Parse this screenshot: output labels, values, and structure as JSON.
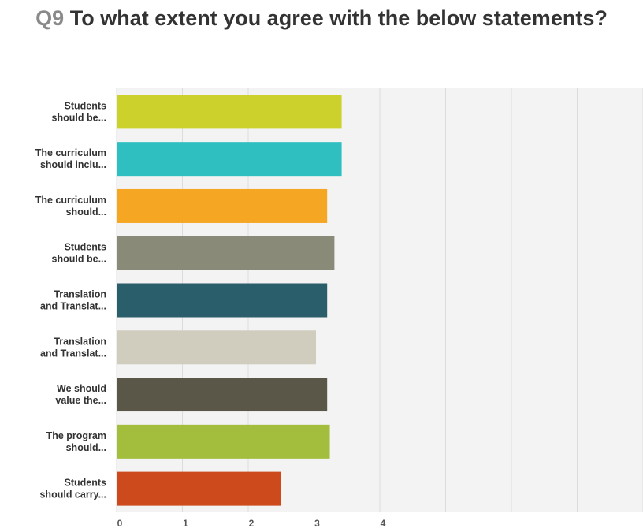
{
  "chart_data": {
    "type": "bar",
    "orientation": "horizontal",
    "title_prefix": "Q9",
    "title": "To what extent you agree with the below statements?",
    "categories": [
      [
        "Students",
        "should be..."
      ],
      [
        "The curriculum",
        "should inclu..."
      ],
      [
        "The curriculum",
        "should..."
      ],
      [
        "Students",
        "should be..."
      ],
      [
        "Translation",
        "and Translat..."
      ],
      [
        "Translation",
        "and Translat..."
      ],
      [
        "We should",
        "value the..."
      ],
      [
        "The program",
        "should..."
      ],
      [
        "Students",
        "should carry..."
      ]
    ],
    "values": [
      3.42,
      3.42,
      3.2,
      3.31,
      3.2,
      3.03,
      3.2,
      3.24,
      2.5
    ],
    "colors": [
      "#cdd12c",
      "#2fbfc1",
      "#f5a623",
      "#898a78",
      "#2b5e6b",
      "#d0cdbf",
      "#5a5748",
      "#a3be3c",
      "#cc4a1c"
    ],
    "xticks": [
      "0",
      "1",
      "2",
      "3",
      "4"
    ],
    "xlim": [
      0,
      8
    ],
    "grid": true,
    "xlabel": "",
    "ylabel": ""
  }
}
